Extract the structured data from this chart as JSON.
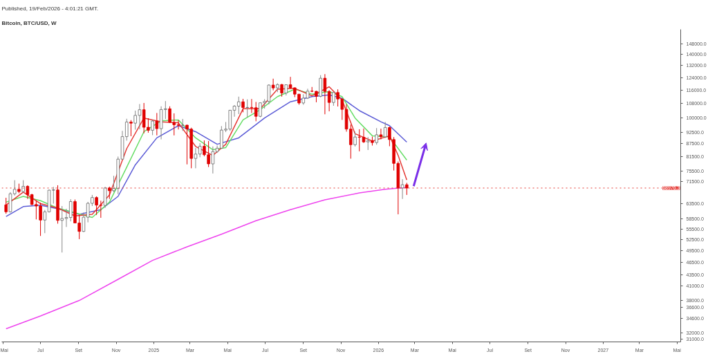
{
  "chart_data": {
    "type": "candlestick",
    "title": "Bitcoin, BTC/USD, W",
    "annotations": [
      "Published, 19/Feb/2026 - 4:01:21 GMT."
    ],
    "log": true,
    "grid": false,
    "xlim": [
      "2024-04-29",
      "2027-05-07"
    ],
    "xticks": [
      {
        "value": "2024-05-01",
        "label": "Mai"
      },
      {
        "value": "2024-07-01",
        "label": "Jul"
      },
      {
        "value": "2024-09-01",
        "label": "Set"
      },
      {
        "value": "2024-11-01",
        "label": "Nov"
      },
      {
        "value": "2025-01-01",
        "label": "2025"
      },
      {
        "value": "2025-03-01",
        "label": "Mar"
      },
      {
        "value": "2025-05-01",
        "label": "Mai"
      },
      {
        "value": "2025-07-01",
        "label": "Jul"
      },
      {
        "value": "2025-09-01",
        "label": "Set"
      },
      {
        "value": "2025-11-01",
        "label": "Nov"
      },
      {
        "value": "2026-01-01",
        "label": "2026"
      },
      {
        "value": "2026-03-01",
        "label": "Mar"
      },
      {
        "value": "2026-05-01",
        "label": "Mai"
      },
      {
        "value": "2026-07-01",
        "label": "Jul"
      },
      {
        "value": "2026-09-01",
        "label": "Set"
      },
      {
        "value": "2026-11-01",
        "label": "Nov"
      },
      {
        "value": "2027-01-01",
        "label": "2027"
      },
      {
        "value": "2027-03-01",
        "label": "Mar"
      },
      {
        "value": "2027-05-01",
        "label": "Mai"
      }
    ],
    "ylim": [
      30500,
      160000
    ],
    "yticks": [
      {
        "value": 148000,
        "label": "148000.0"
      },
      {
        "value": 140000,
        "label": "140000.0"
      },
      {
        "value": 132000,
        "label": "132000.0"
      },
      {
        "value": 124000,
        "label": "124000.0"
      },
      {
        "value": 116000,
        "label": "116000.0"
      },
      {
        "value": 108000,
        "label": "108000.0"
      },
      {
        "value": 100000,
        "label": "100000.0"
      },
      {
        "value": 92500,
        "label": "92500.0"
      },
      {
        "value": 87500,
        "label": "87500.0"
      },
      {
        "value": 81500,
        "label": "81500.0"
      },
      {
        "value": 75500,
        "label": "75500.0"
      },
      {
        "value": 71500,
        "label": "71500.0"
      },
      {
        "value": 63500,
        "label": "63500.0"
      },
      {
        "value": 58500,
        "label": "58500.0"
      },
      {
        "value": 55500,
        "label": "55500.0"
      },
      {
        "value": 52500,
        "label": "52500.0"
      },
      {
        "value": 49500,
        "label": "49500.0"
      },
      {
        "value": 46500,
        "label": "46500.0"
      },
      {
        "value": 43500,
        "label": "43500.0"
      },
      {
        "value": 41000,
        "label": "41000.0"
      },
      {
        "value": 38000,
        "label": "38000.0"
      },
      {
        "value": 36600,
        "label": "36600.0"
      },
      {
        "value": 34600,
        "label": "34600.0"
      },
      {
        "value": 32000,
        "label": "32000.0"
      },
      {
        "value": 31000,
        "label": "31000.0"
      }
    ],
    "ref_lines": [
      {
        "axis": "y",
        "value": 68976.3,
        "label": "68976.3",
        "color": "#e53935",
        "line_style": "dotted"
      }
    ],
    "series": [
      {
        "type": "line",
        "color": "#ee44ee",
        "x": [
          "2024-05-06",
          "2024-07-01",
          "2024-09-02",
          "2024-11-04",
          "2024-12-30",
          "2025-02-24",
          "2025-04-21",
          "2025-06-16",
          "2025-08-11",
          "2025-10-06",
          "2025-12-01",
          "2026-01-12",
          "2026-02-16"
        ],
        "values": [
          32700,
          35000,
          38000,
          42500,
          47000,
          50500,
          54000,
          58000,
          61500,
          64800,
          67200,
          68500,
          69200
        ]
      },
      {
        "type": "line",
        "color": "#5b5bd6",
        "x": [
          "2024-05-06",
          "2024-06-03",
          "2024-07-01",
          "2024-08-05",
          "2024-09-02",
          "2024-10-07",
          "2024-11-04",
          "2024-12-02",
          "2025-01-06",
          "2025-02-10",
          "2025-03-10",
          "2025-04-14",
          "2025-05-19",
          "2025-06-30",
          "2025-08-11",
          "2025-09-15",
          "2025-10-13",
          "2025-11-03",
          "2025-12-01",
          "2026-01-05",
          "2026-01-19",
          "2026-02-16"
        ],
        "values": [
          59300,
          62500,
          63000,
          61500,
          60000,
          61500,
          66000,
          78000,
          90000,
          96000,
          93000,
          87000,
          90000,
          100000,
          109000,
          112000,
          113000,
          111000,
          104000,
          98000,
          96000,
          88000
        ]
      },
      {
        "type": "line",
        "color": "#66dd66",
        "x": [
          "2024-05-06",
          "2024-06-03",
          "2024-07-01",
          "2024-07-29",
          "2024-08-26",
          "2024-09-23",
          "2024-10-21",
          "2024-11-18",
          "2024-12-16",
          "2025-01-13",
          "2025-02-10",
          "2025-03-10",
          "2025-04-07",
          "2025-04-28",
          "2025-05-26",
          "2025-06-23",
          "2025-07-21",
          "2025-08-18",
          "2025-09-15",
          "2025-10-13",
          "2025-11-03",
          "2025-11-24",
          "2025-12-22",
          "2026-01-19",
          "2026-02-16"
        ],
        "values": [
          64000,
          66000,
          64500,
          62000,
          60500,
          59000,
          64000,
          77000,
          93000,
          98500,
          99000,
          90000,
          84500,
          85500,
          99000,
          104500,
          112000,
          116500,
          113500,
          115000,
          112000,
          100000,
          91000,
          90500,
          80000
        ]
      },
      {
        "type": "line",
        "color": "#e53935",
        "x": [
          "2024-05-06",
          "2024-06-03",
          "2024-07-01",
          "2024-07-29",
          "2024-08-26",
          "2024-09-23",
          "2024-10-21",
          "2024-11-18",
          "2024-12-16",
          "2025-01-13",
          "2025-02-10",
          "2025-03-10",
          "2025-04-07",
          "2025-04-28",
          "2025-05-26",
          "2025-06-23",
          "2025-07-21",
          "2025-08-18",
          "2025-09-15",
          "2025-10-13",
          "2025-11-03",
          "2025-11-24",
          "2025-12-22",
          "2026-01-19",
          "2026-02-02",
          "2026-02-16"
        ],
        "values": [
          63000,
          67500,
          63500,
          62000,
          59500,
          60000,
          66500,
          85000,
          100000,
          98000,
          97500,
          86000,
          82000,
          87000,
          105000,
          105000,
          116500,
          117000,
          112500,
          118000,
          110000,
          92000,
          88500,
          91000,
          82000,
          72000
        ]
      },
      {
        "x": [
          "2024-05-06",
          "2024-05-13",
          "2024-05-20",
          "2024-05-27",
          "2024-06-03",
          "2024-06-10",
          "2024-06-17",
          "2024-06-24",
          "2024-07-01",
          "2024-07-08",
          "2024-07-15",
          "2024-07-22",
          "2024-07-29",
          "2024-08-05",
          "2024-08-12",
          "2024-08-19",
          "2024-08-26",
          "2024-09-02",
          "2024-09-09",
          "2024-09-16",
          "2024-09-23",
          "2024-09-30",
          "2024-10-07",
          "2024-10-14",
          "2024-10-21",
          "2024-10-28",
          "2024-11-04",
          "2024-11-11",
          "2024-11-18",
          "2024-11-25",
          "2024-12-02",
          "2024-12-09",
          "2024-12-16",
          "2024-12-23",
          "2024-12-30",
          "2025-01-06",
          "2025-01-13",
          "2025-01-20",
          "2025-01-27",
          "2025-02-03",
          "2025-02-10",
          "2025-02-17",
          "2025-02-24",
          "2025-03-03",
          "2025-03-10",
          "2025-03-17",
          "2025-03-24",
          "2025-03-31",
          "2025-04-07",
          "2025-04-14",
          "2025-04-21",
          "2025-04-28",
          "2025-05-05",
          "2025-05-12",
          "2025-05-19",
          "2025-05-26",
          "2025-06-02",
          "2025-06-09",
          "2025-06-16",
          "2025-06-23",
          "2025-06-30",
          "2025-07-07",
          "2025-07-14",
          "2025-07-21",
          "2025-07-28",
          "2025-08-04",
          "2025-08-11",
          "2025-08-18",
          "2025-08-25",
          "2025-09-01",
          "2025-09-08",
          "2025-09-15",
          "2025-09-22",
          "2025-09-29",
          "2025-10-06",
          "2025-10-13",
          "2025-10-20",
          "2025-10-27",
          "2025-11-03",
          "2025-11-10",
          "2025-11-17",
          "2025-11-24",
          "2025-12-01",
          "2025-12-08",
          "2025-12-15",
          "2025-12-22",
          "2025-12-29",
          "2026-01-05",
          "2026-01-12",
          "2026-01-19",
          "2026-01-26",
          "2026-02-02",
          "2026-02-09",
          "2026-02-16"
        ],
        "ohlc": [
          [
            63100,
            65500,
            60200,
            60800
          ],
          [
            60800,
            67500,
            60600,
            66900
          ],
          [
            66900,
            71900,
            66300,
            68500
          ],
          [
            68500,
            70600,
            67100,
            67700
          ],
          [
            67700,
            71900,
            67200,
            69600
          ],
          [
            69600,
            70000,
            65100,
            66600
          ],
          [
            66600,
            66900,
            63000,
            63200
          ],
          [
            63200,
            64500,
            58400,
            62700
          ],
          [
            62700,
            63800,
            53500,
            58200
          ],
          [
            58200,
            61400,
            54300,
            60800
          ],
          [
            60800,
            68400,
            60600,
            68200
          ],
          [
            68200,
            69400,
            63500,
            68300
          ],
          [
            68300,
            70000,
            57100,
            58100
          ],
          [
            58100,
            62700,
            49000,
            58700
          ],
          [
            58700,
            61800,
            56100,
            59000
          ],
          [
            59000,
            65000,
            57800,
            64200
          ],
          [
            64200,
            64900,
            57200,
            57300
          ],
          [
            57300,
            59800,
            52600,
            54800
          ],
          [
            54800,
            60600,
            54600,
            59100
          ],
          [
            59100,
            64100,
            57500,
            63600
          ],
          [
            63600,
            66500,
            62700,
            65600
          ],
          [
            65600,
            66000,
            59800,
            63000
          ],
          [
            63000,
            64500,
            58900,
            62900
          ],
          [
            62900,
            69400,
            62100,
            69000
          ],
          [
            69000,
            69500,
            65100,
            68000
          ],
          [
            68000,
            73600,
            67500,
            68800
          ],
          [
            68800,
            81500,
            66800,
            80400
          ],
          [
            80400,
            93400,
            80200,
            90600
          ],
          [
            90600,
            99600,
            88700,
            97900
          ],
          [
            97900,
            98900,
            90800,
            97300
          ],
          [
            97300,
            104000,
            94000,
            101400
          ],
          [
            101400,
            107700,
            94200,
            104500
          ],
          [
            104500,
            108300,
            92200,
            95200
          ],
          [
            95200,
            99900,
            92500,
            93700
          ],
          [
            93700,
            99000,
            91300,
            98400
          ],
          [
            98400,
            102700,
            91200,
            94500
          ],
          [
            94500,
            106400,
            89300,
            104600
          ],
          [
            104600,
            109400,
            99500,
            105000
          ],
          [
            105000,
            106400,
            97400,
            97700
          ],
          [
            97700,
            102500,
            91200,
            96500
          ],
          [
            96500,
            98800,
            94100,
            96200
          ],
          [
            96200,
            99500,
            93400,
            96300
          ],
          [
            96300,
            96500,
            78200,
            94300
          ],
          [
            94300,
            95000,
            76600,
            80700
          ],
          [
            80700,
            85300,
            76600,
            82600
          ],
          [
            82600,
            87500,
            81200,
            86100
          ],
          [
            86100,
            88800,
            81600,
            82300
          ],
          [
            82300,
            88500,
            77100,
            78400
          ],
          [
            78400,
            86000,
            74500,
            83700
          ],
          [
            83700,
            86400,
            83100,
            85200
          ],
          [
            85200,
            95800,
            85100,
            93800
          ],
          [
            93800,
            97900,
            92800,
            94300
          ],
          [
            94300,
            104300,
            93400,
            104200
          ],
          [
            104200,
            107100,
            100700,
            106500
          ],
          [
            106500,
            112000,
            102100,
            109000
          ],
          [
            109000,
            110700,
            103100,
            105700
          ],
          [
            105700,
            110400,
            100400,
            105800
          ],
          [
            105800,
            110600,
            102700,
            105600
          ],
          [
            105600,
            108900,
            98300,
            100900
          ],
          [
            100900,
            108500,
            100400,
            108400
          ],
          [
            108400,
            110500,
            105100,
            109200
          ],
          [
            109200,
            119500,
            107500,
            119100
          ],
          [
            119100,
            123200,
            115800,
            117300
          ],
          [
            117300,
            120200,
            114700,
            119400
          ],
          [
            119400,
            119800,
            112000,
            114200
          ],
          [
            114200,
            119400,
            112700,
            119300
          ],
          [
            119300,
            124400,
            116800,
            117400
          ],
          [
            117400,
            117600,
            111700,
            113500
          ],
          [
            113500,
            113600,
            107300,
            108300
          ],
          [
            108300,
            113400,
            107300,
            111100
          ],
          [
            111100,
            116800,
            110600,
            115300
          ],
          [
            115300,
            117900,
            114700,
            115200
          ],
          [
            115200,
            115500,
            108700,
            112200
          ],
          [
            112200,
            125500,
            111600,
            123500
          ],
          [
            123500,
            126200,
            102000,
            115100
          ],
          [
            115100,
            115900,
            103600,
            108600
          ],
          [
            108600,
            114600,
            106700,
            114500
          ],
          [
            114500,
            116400,
            106300,
            110600
          ],
          [
            110600,
            110900,
            99000,
            104700
          ],
          [
            104700,
            107500,
            93000,
            94300
          ],
          [
            94300,
            96600,
            80600,
            86800
          ],
          [
            86800,
            93000,
            86000,
            90400
          ],
          [
            90400,
            94200,
            83800,
            90300
          ],
          [
            90300,
            94600,
            87600,
            88100
          ],
          [
            88100,
            90400,
            84400,
            88600
          ],
          [
            88600,
            90600,
            86400,
            87800
          ],
          [
            87800,
            94800,
            86800,
            91500
          ],
          [
            91500,
            94500,
            89300,
            90500
          ],
          [
            90500,
            97900,
            90000,
            95100
          ],
          [
            95100,
            95500,
            86100,
            89200
          ],
          [
            89200,
            90400,
            75700,
            78600
          ],
          [
            78600,
            79400,
            60000,
            69000
          ],
          [
            69000,
            72300,
            65100,
            70200
          ],
          [
            70200,
            70900,
            66500,
            68976.3
          ]
        ],
        "colors": [
          "#e00000",
          "#ffffff",
          "#ffffff",
          "#e00000",
          "#ffffff",
          "#e00000",
          "#e00000",
          "#e00000",
          "#e00000",
          "#ffffff",
          "#ffffff",
          "#ffffff",
          "#e00000",
          "#ffffff",
          "#ffffff",
          "#ffffff",
          "#e00000",
          "#e00000",
          "#ffffff",
          "#ffffff",
          "#ffffff",
          "#e00000",
          "#e00000",
          "#ffffff",
          "#e00000",
          "#ffffff",
          "#ffffff",
          "#ffffff",
          "#ffffff",
          "#e00000",
          "#ffffff",
          "#ffffff",
          "#e00000",
          "#e00000",
          "#ffffff",
          "#e00000",
          "#ffffff",
          "#ffffff",
          "#e00000",
          "#e00000",
          "#e00000",
          "#ffffff",
          "#e00000",
          "#e00000",
          "#ffffff",
          "#ffffff",
          "#e00000",
          "#e00000",
          "#ffffff",
          "#ffffff",
          "#ffffff",
          "#ffffff",
          "#ffffff",
          "#ffffff",
          "#ffffff",
          "#e00000",
          "#ffffff",
          "#e00000",
          "#e00000",
          "#ffffff",
          "#ffffff",
          "#ffffff",
          "#e00000",
          "#ffffff",
          "#e00000",
          "#ffffff",
          "#e00000",
          "#e00000",
          "#e00000",
          "#ffffff",
          "#ffffff",
          "#e00000",
          "#e00000",
          "#ffffff",
          "#e00000",
          "#e00000",
          "#ffffff",
          "#e00000",
          "#e00000",
          "#e00000",
          "#e00000",
          "#ffffff",
          "#e00000",
          "#e00000",
          "#ffffff",
          "#e00000",
          "#ffffff",
          "#e00000",
          "#ffffff",
          "#e00000",
          "#e00000",
          "#e00000",
          "#ffffff",
          "#e00000"
        ]
      }
    ]
  }
}
